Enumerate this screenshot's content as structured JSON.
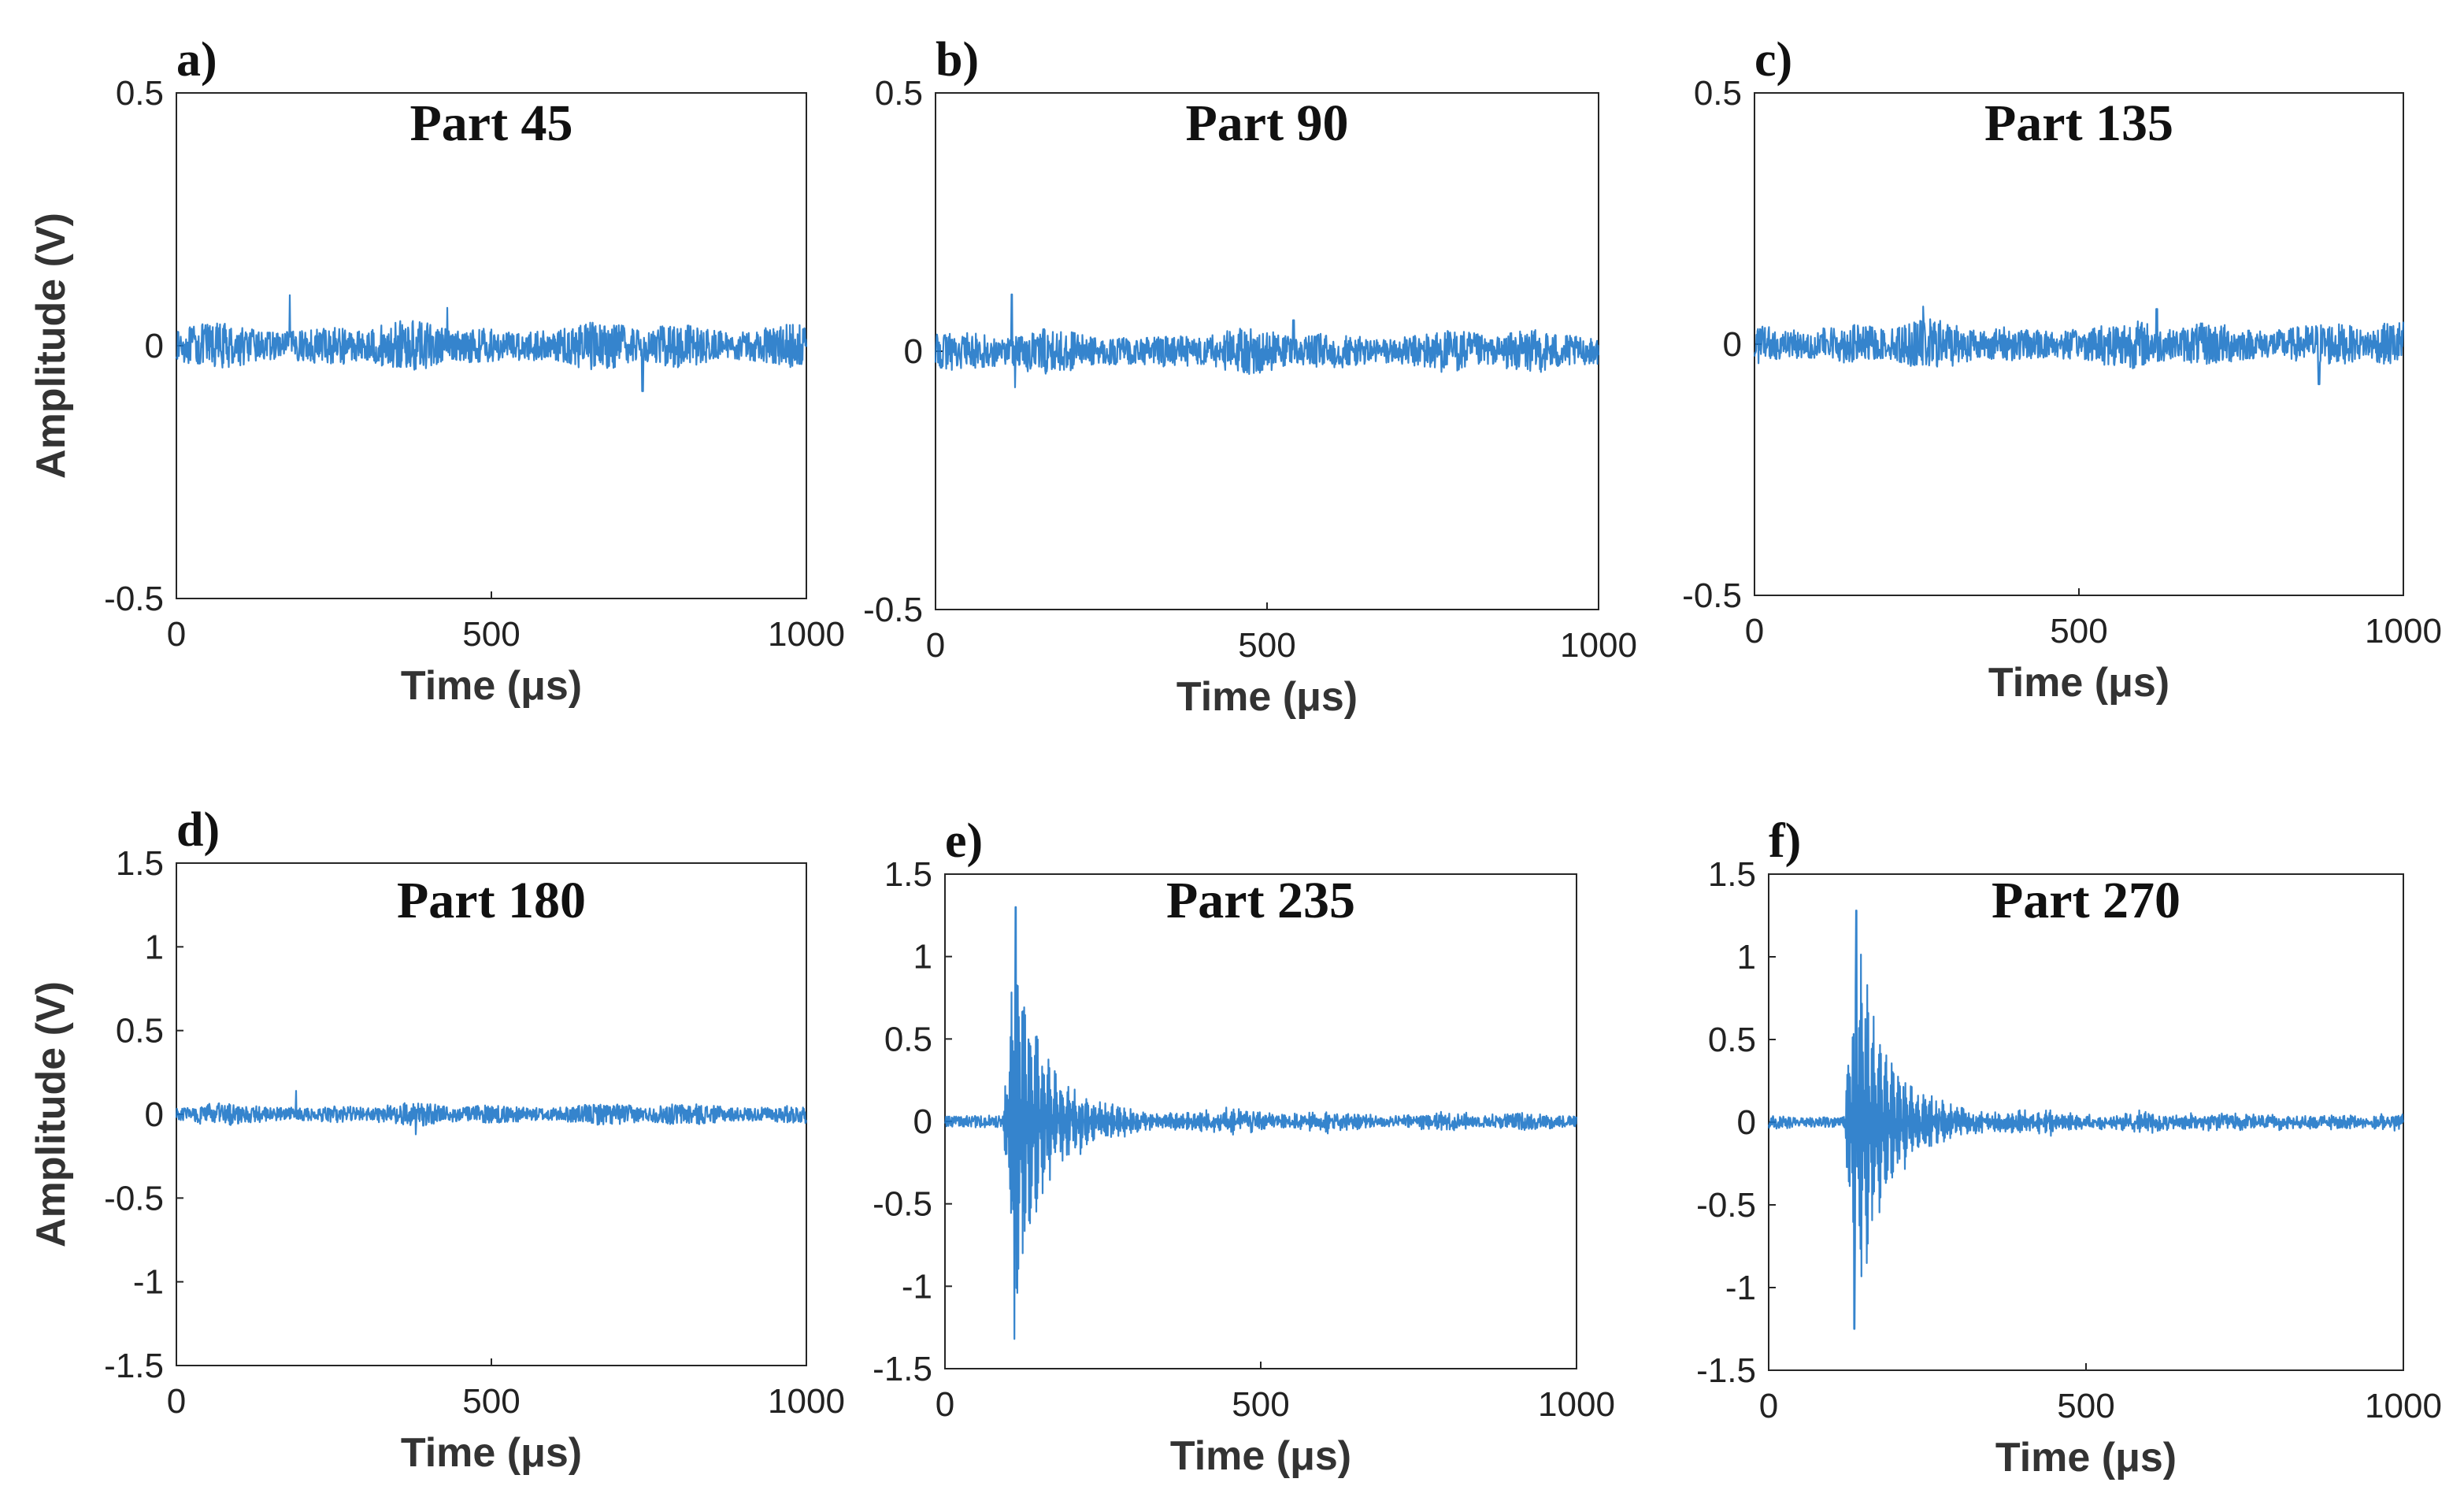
{
  "figure": {
    "x_unit_prefix": "μ"
  },
  "chart_data": [
    {
      "panel": "a)",
      "type": "line",
      "title": "Part 45",
      "xlabel": "Time (μs)",
      "ylabel": "Amplitude (V)",
      "xlim": [
        0,
        1000
      ],
      "ylim": [
        -0.5,
        0.5
      ],
      "xticks": [
        "0",
        "500",
        "1000"
      ],
      "yticks": [
        "0.5",
        "0",
        "-0.5"
      ],
      "series": [
        {
          "name": "signal",
          "color": "#1f77c8",
          "noise_amplitude": 0.05,
          "peaks": [
            {
              "x": 180,
              "y": 0.1
            },
            {
              "x": 740,
              "y": -0.09
            },
            {
              "x": 430,
              "y": 0.075
            }
          ]
        }
      ]
    },
    {
      "panel": "b)",
      "type": "line",
      "title": "Part 90",
      "xlabel": "Time (μs)",
      "ylabel": "",
      "xlim": [
        0,
        1000
      ],
      "ylim": [
        -0.5,
        0.5
      ],
      "xticks": [
        "0",
        "500",
        "1000"
      ],
      "yticks": [
        "0.5",
        "0",
        "-0.5"
      ],
      "series": [
        {
          "name": "signal",
          "color": "#1f77c8",
          "noise_amplitude": 0.045,
          "peaks": [
            {
              "x": 115,
              "y": 0.11
            },
            {
              "x": 120,
              "y": -0.07
            },
            {
              "x": 540,
              "y": 0.06
            }
          ]
        }
      ]
    },
    {
      "panel": "c)",
      "type": "line",
      "title": "Part 135",
      "xlabel": "Time (μs)",
      "ylabel": "",
      "xlim": [
        0,
        1000
      ],
      "ylim": [
        -0.5,
        0.5
      ],
      "xticks": [
        "0",
        "500",
        "1000"
      ],
      "yticks": [
        "0.5",
        "0",
        "-0.5"
      ],
      "series": [
        {
          "name": "signal",
          "color": "#1f77c8",
          "noise_amplitude": 0.05,
          "peaks": [
            {
              "x": 260,
              "y": 0.075
            },
            {
              "x": 620,
              "y": 0.07
            },
            {
              "x": 870,
              "y": -0.08
            }
          ]
        }
      ]
    },
    {
      "panel": "d)",
      "type": "line",
      "title": "Part 180",
      "xlabel": "Time (μs)",
      "ylabel": "Amplitude (V)",
      "xlim": [
        0,
        1000
      ],
      "ylim": [
        -1.5,
        1.5
      ],
      "xticks": [
        "0",
        "500",
        "1000"
      ],
      "yticks": [
        "1.5",
        "1",
        "0.5",
        "0",
        "-0.5",
        "-1",
        "-1.5"
      ],
      "series": [
        {
          "name": "signal",
          "color": "#1f77c8",
          "noise_amplitude": 0.07,
          "peaks": [
            {
              "x": 190,
              "y": 0.14
            },
            {
              "x": 380,
              "y": -0.12
            }
          ]
        }
      ]
    },
    {
      "panel": "e)",
      "type": "line",
      "title": "Part 235",
      "xlabel": "Time (μs)",
      "ylabel": "",
      "xlim": [
        0,
        1000
      ],
      "ylim": [
        -1.5,
        1.5
      ],
      "xticks": [
        "0",
        "500",
        "1000"
      ],
      "yticks": [
        "1.5",
        "1",
        "0.5",
        "0",
        "-0.5",
        "-1",
        "-1.5"
      ],
      "series": [
        {
          "name": "signal",
          "color": "#1f77c8",
          "noise_amplitude": 0.05,
          "burst": {
            "onset": 100,
            "peak_time": 112,
            "decay": 38,
            "amplitude": 1.3
          },
          "peaks": [
            {
              "x": 112,
              "y": 1.3
            },
            {
              "x": 110,
              "y": -1.32
            }
          ]
        }
      ]
    },
    {
      "panel": "f)",
      "type": "line",
      "title": "Part 270",
      "xlabel": "Time (μs)",
      "ylabel": "",
      "xlim": [
        0,
        1000
      ],
      "ylim": [
        -1.5,
        1.5
      ],
      "xticks": [
        "0",
        "500",
        "1000"
      ],
      "yticks": [
        "1.5",
        "1",
        "0.5",
        "0",
        "-0.5",
        "-1",
        "-1.5"
      ],
      "series": [
        {
          "name": "signal",
          "color": "#1f77c8",
          "noise_amplitude": 0.05,
          "burst": {
            "onset": 125,
            "peak_time": 138,
            "decay": 40,
            "amplitude": 1.28
          },
          "peaks": [
            {
              "x": 138,
              "y": 1.28
            },
            {
              "x": 135,
              "y": -1.25
            }
          ]
        }
      ]
    }
  ]
}
